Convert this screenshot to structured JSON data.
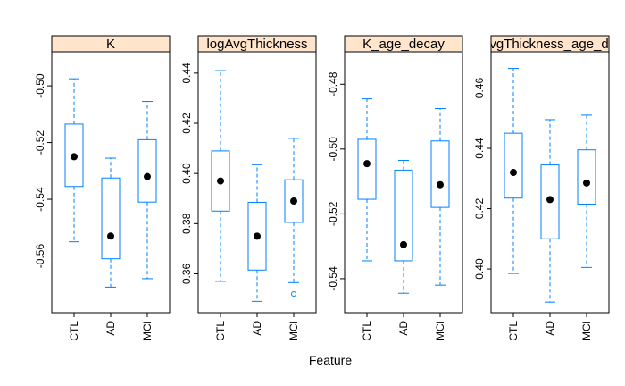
{
  "figure": {
    "xlabel": "Feature"
  },
  "colors": {
    "box": "#0080ff",
    "median": "#000000",
    "strip": "#ffe5cc",
    "frame": "#000000"
  },
  "chart_data": [
    {
      "type": "box",
      "title": "K",
      "categories": [
        "CTL",
        "AD",
        "MCI"
      ],
      "ylim": [
        -0.58,
        -0.488
      ],
      "yticks": [
        -0.56,
        -0.54,
        -0.52,
        -0.5
      ],
      "ytick_labels": [
        "-0.56",
        "-0.54",
        "-0.52",
        "-0.50"
      ],
      "boxes": [
        {
          "min": -0.555,
          "q1": -0.5355,
          "median": -0.525,
          "q3": -0.5135,
          "max": -0.4975,
          "outliers": []
        },
        {
          "min": -0.571,
          "q1": -0.561,
          "median": -0.553,
          "q3": -0.5325,
          "max": -0.5255,
          "outliers": []
        },
        {
          "min": -0.568,
          "q1": -0.541,
          "median": -0.532,
          "q3": -0.519,
          "max": -0.5055,
          "outliers": []
        }
      ]
    },
    {
      "type": "box",
      "title": "logAvgThickness",
      "categories": [
        "CTL",
        "AD",
        "MCI"
      ],
      "ylim": [
        0.3445,
        0.4485
      ],
      "yticks": [
        0.36,
        0.38,
        0.4,
        0.42,
        0.44
      ],
      "ytick_labels": [
        "0.36",
        "0.38",
        "0.40",
        "0.42",
        "0.44"
      ],
      "boxes": [
        {
          "min": 0.357,
          "q1": 0.385,
          "median": 0.397,
          "q3": 0.409,
          "max": 0.441,
          "outliers": []
        },
        {
          "min": 0.349,
          "q1": 0.3615,
          "median": 0.375,
          "q3": 0.3885,
          "max": 0.4035,
          "outliers": []
        },
        {
          "min": 0.3565,
          "q1": 0.3805,
          "median": 0.389,
          "q3": 0.3975,
          "max": 0.414,
          "outliers": [
            0.352
          ]
        }
      ]
    },
    {
      "type": "box",
      "title": "K_age_decay",
      "categories": [
        "CTL",
        "AD",
        "MCI"
      ],
      "ylim": [
        -0.5505,
        -0.47
      ],
      "yticks": [
        -0.54,
        -0.52,
        -0.5,
        -0.48
      ],
      "ytick_labels": [
        "-0.54",
        "-0.52",
        "-0.50",
        "-0.48"
      ],
      "boxes": [
        {
          "min": -0.5345,
          "q1": -0.5155,
          "median": -0.5045,
          "q3": -0.497,
          "max": -0.4845,
          "outliers": []
        },
        {
          "min": -0.5445,
          "q1": -0.5345,
          "median": -0.5295,
          "q3": -0.5065,
          "max": -0.5035,
          "outliers": []
        },
        {
          "min": -0.542,
          "q1": -0.518,
          "median": -0.511,
          "q3": -0.4975,
          "max": -0.4875,
          "outliers": []
        }
      ]
    },
    {
      "type": "box",
      "title": "logAvgThickness_age_decay",
      "categories": [
        "CTL",
        "AD",
        "MCI"
      ],
      "ylim": [
        0.3855,
        0.472
      ],
      "yticks": [
        0.4,
        0.42,
        0.44,
        0.46
      ],
      "ytick_labels": [
        "0.40",
        "0.42",
        "0.44",
        "0.46"
      ],
      "boxes": [
        {
          "min": 0.3985,
          "q1": 0.4235,
          "median": 0.432,
          "q3": 0.445,
          "max": 0.4665,
          "outliers": []
        },
        {
          "min": 0.389,
          "q1": 0.41,
          "median": 0.423,
          "q3": 0.4345,
          "max": 0.4495,
          "outliers": []
        },
        {
          "min": 0.4005,
          "q1": 0.4215,
          "median": 0.4285,
          "q3": 0.4395,
          "max": 0.451,
          "outliers": []
        }
      ]
    }
  ]
}
